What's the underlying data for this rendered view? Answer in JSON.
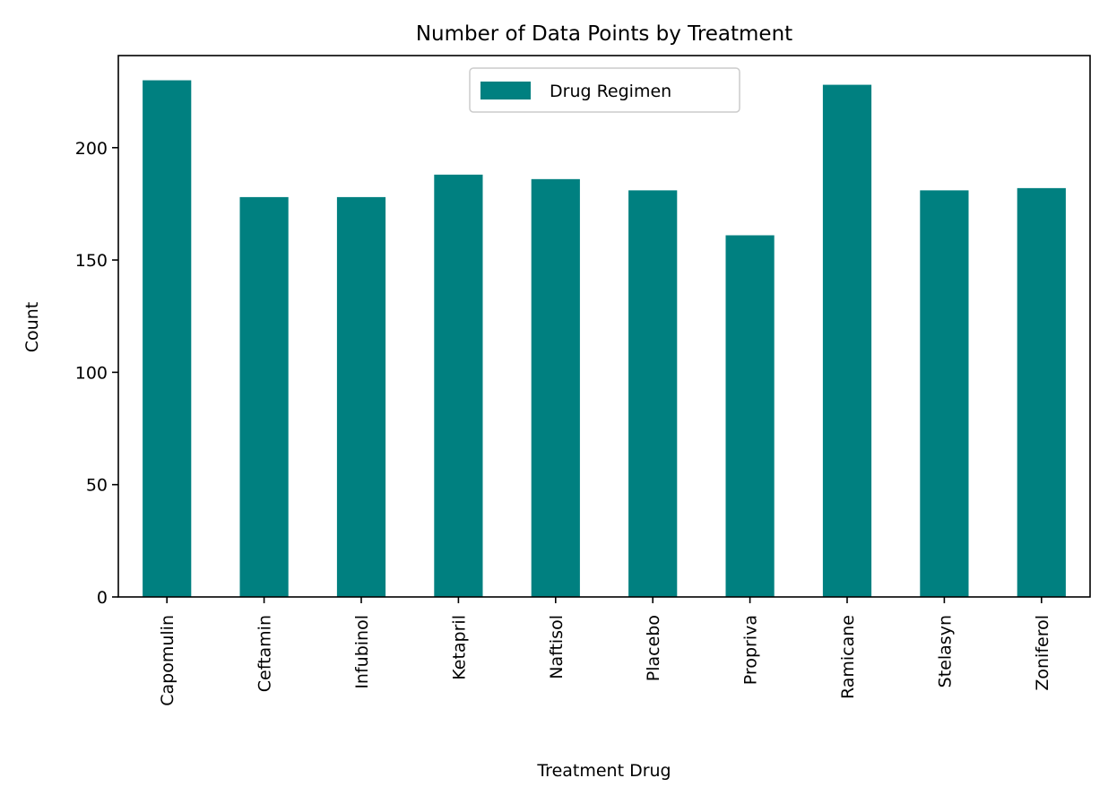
{
  "chart_data": {
    "type": "bar",
    "title": "Number of Data Points by Treatment",
    "xlabel": "Treatment Drug",
    "ylabel": "Count",
    "categories": [
      "Capomulin",
      "Ceftamin",
      "Infubinol",
      "Ketapril",
      "Naftisol",
      "Placebo",
      "Propriva",
      "Ramicane",
      "Stelasyn",
      "Zoniferol"
    ],
    "series": [
      {
        "name": "Drug Regimen",
        "color": "#008080",
        "values": [
          230,
          178,
          178,
          188,
          186,
          181,
          161,
          228,
          181,
          182
        ]
      }
    ],
    "ylim": [
      0,
      241
    ],
    "yticks": [
      0,
      50,
      100,
      150,
      200
    ],
    "grid": false,
    "legend_position": "top-center"
  }
}
